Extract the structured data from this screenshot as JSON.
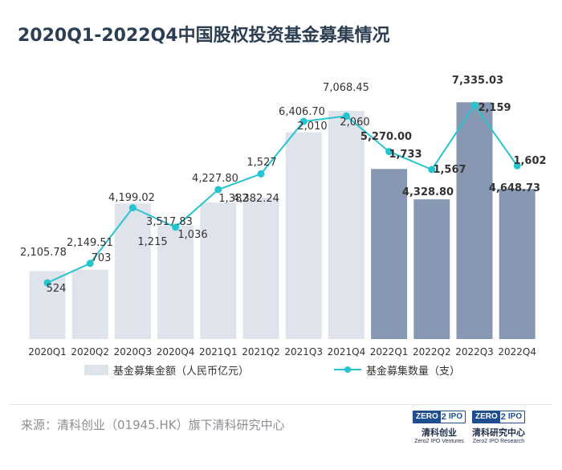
{
  "title": "2020Q1-2022Q4中国股权投资基金募集情况",
  "source": "来源：清科创业（01945.HK）旗下清科研究中心",
  "logos": [
    {
      "brand_left": "ZERO",
      "brand_mid": "2",
      "brand_right": "IPO",
      "cn": "清科创业",
      "en": "Zero2 IPO Ventures"
    },
    {
      "brand_left": "ZERO",
      "brand_mid": "2",
      "brand_right": "IPO",
      "cn": "清科研究中心",
      "en": "Zero2 IPO Research"
    }
  ],
  "colors": {
    "bar_light": "#dfe3ec",
    "bar_dark": "#8898b3",
    "line": "#25c5d0",
    "text": "#333333"
  },
  "chart_data": {
    "type": "bar",
    "categories": [
      "2020Q1",
      "2020Q2",
      "2020Q3",
      "2020Q4",
      "2021Q1",
      "2021Q2",
      "2021Q3",
      "2021Q4",
      "2022Q1",
      "2022Q2",
      "2022Q3",
      "2022Q4"
    ],
    "series": [
      {
        "name": "基金募集金额（人民币亿元）",
        "type": "bar",
        "values": [
          2105.78,
          2149.51,
          4199.02,
          3517.83,
          4227.8,
          4382.24,
          6406.7,
          7068.45,
          5270.0,
          4328.8,
          7335.03,
          4648.73
        ],
        "labels": [
          "2,105.78",
          "2,149.51",
          "4,199.02",
          "3,517.83",
          "4,227.80",
          "4,382.24",
          "6,406.70",
          "7,068.45",
          "5,270.00",
          "4,328.80",
          "7,335.03",
          "4,648.73"
        ]
      },
      {
        "name": "基金募集数量（支）",
        "type": "line",
        "values": [
          524,
          703,
          1215,
          1036,
          1382,
          1527,
          2010,
          2060,
          1733,
          1567,
          2159,
          1602
        ],
        "labels": [
          "524",
          "703",
          "1,215",
          "1,036",
          "1,382",
          "1,527",
          "2,010",
          "2,060",
          "1,733",
          "1,567",
          "2,159",
          "1,602"
        ]
      }
    ],
    "highlight_from_index": 8,
    "legend_position": "bottom",
    "grid": false
  }
}
